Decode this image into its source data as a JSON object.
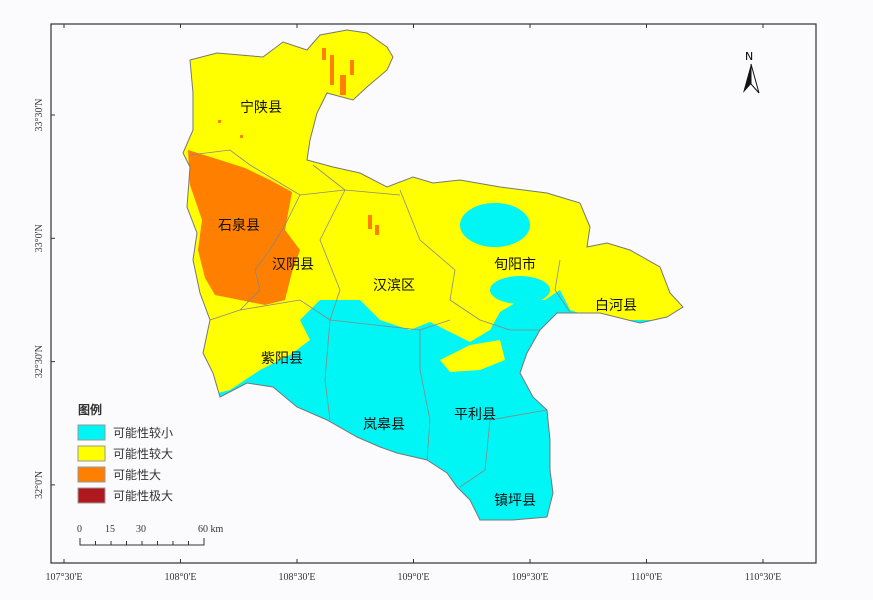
{
  "map": {
    "counties": [
      "宁陕县",
      "石泉县",
      "汉阴县",
      "汉滨区",
      "旬阳市",
      "白河县",
      "紫阳县",
      "岚皋县",
      "平利县",
      "镇坪县"
    ],
    "north_label": "N",
    "lon_ticks": [
      "107°30'E",
      "108°0'E",
      "108°30'E",
      "109°0'E",
      "109°30'E",
      "110°0'E",
      "110°30'E"
    ],
    "lat_ticks": [
      "33°30'N",
      "33°0'N",
      "32°30'N",
      "32°0'N"
    ]
  },
  "legend": {
    "title": "图例",
    "items": [
      {
        "label": "可能性较小",
        "color": "#00f5f5"
      },
      {
        "label": "可能性较大",
        "color": "#ffff00"
      },
      {
        "label": "可能性大",
        "color": "#ff7f00"
      },
      {
        "label": "可能性极大",
        "color": "#b01820"
      }
    ]
  },
  "scale_bar": {
    "ticks": [
      "0",
      "15",
      "30",
      "60 km"
    ]
  }
}
